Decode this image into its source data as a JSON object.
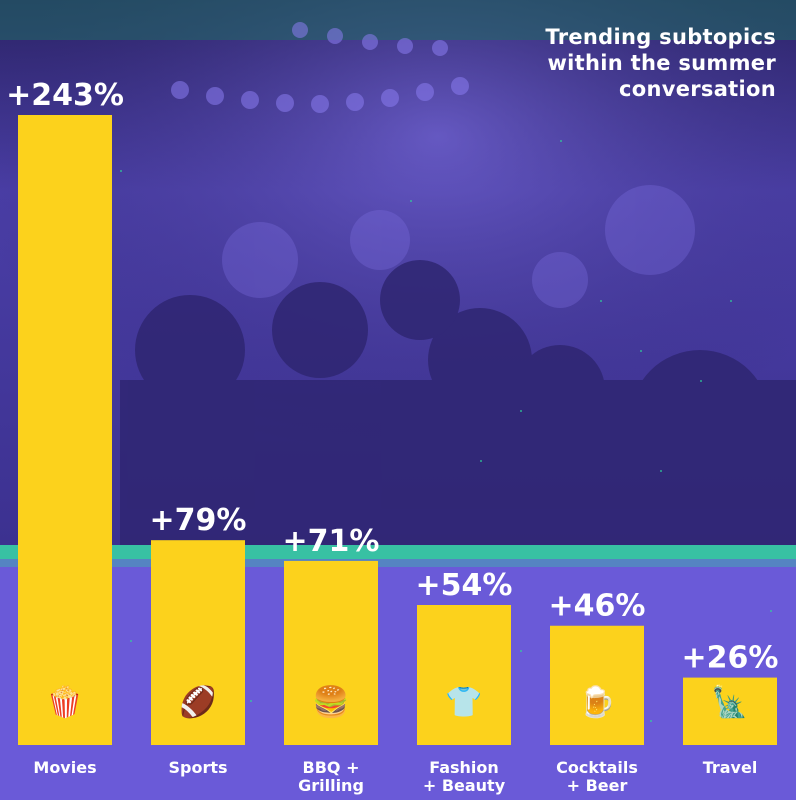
{
  "chart_data": {
    "type": "bar",
    "title_lines": [
      "Trending subtopics",
      "within the summer",
      "conversation"
    ],
    "categories": [
      [
        "Movies"
      ],
      [
        "Sports"
      ],
      [
        "BBQ +",
        "Grilling"
      ],
      [
        "Fashion",
        "+ Beauty"
      ],
      [
        "Cocktails",
        "+ Beer"
      ],
      [
        "Travel"
      ]
    ],
    "values": [
      243,
      79,
      71,
      54,
      46,
      26
    ],
    "value_labels": [
      "+243%",
      "+79%",
      "+71%",
      "+54%",
      "+46%",
      "+26%"
    ],
    "icons": [
      "popcorn-icon",
      "football-icon",
      "burger-icon",
      "shirt-icon",
      "beer-mug-icon",
      "statue-of-liberty-icon"
    ],
    "ylim": [
      0,
      300
    ],
    "grid": false,
    "bar_color": "#fcd21c"
  },
  "colors": {
    "bar": "#fcd21c",
    "background_top": "#3a2f84",
    "background_bottom": "#6a5ad8",
    "accent_green": "#2fd39a",
    "text": "#ffffff"
  }
}
